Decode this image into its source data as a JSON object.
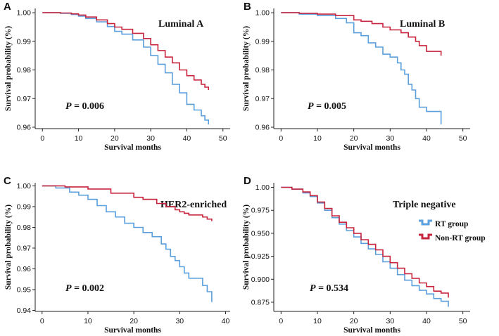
{
  "colors": {
    "rt": "#5b9fdc",
    "nonrt": "#c8253e",
    "axis": "#222222"
  },
  "legend": {
    "rt_label": "RT group",
    "nonrt_label": "Non-RT group",
    "placement": "right-of-panel-D"
  },
  "chart_data": [
    {
      "type": "line",
      "letter": "A",
      "title": "Luminal A",
      "xlabel": "Survival months",
      "ylabel": "Survival probability (%)",
      "xlim": [
        -2,
        52
      ],
      "ylim": [
        0.9595,
        1.0015
      ],
      "xticks": [
        0,
        10,
        20,
        30,
        40,
        50
      ],
      "yticks": [
        0.96,
        0.97,
        0.98,
        0.99,
        1.0
      ],
      "ytick_labels": [
        "0.96",
        "0.97",
        "0.98",
        "0.99",
        "1.00"
      ],
      "p_prefix": "P",
      "p_value": "= 0.006",
      "series": [
        {
          "name": "RT group",
          "x": [
            0,
            5,
            8,
            10,
            12,
            15,
            18,
            20,
            22,
            25,
            28,
            30,
            32,
            34,
            36,
            38,
            40,
            42,
            44,
            45,
            46
          ],
          "y": [
            1.0,
            0.9998,
            0.9994,
            0.9988,
            0.998,
            0.9968,
            0.9952,
            0.9935,
            0.9925,
            0.9905,
            0.988,
            0.985,
            0.982,
            0.979,
            0.975,
            0.972,
            0.968,
            0.966,
            0.964,
            0.9625,
            0.961
          ]
        },
        {
          "name": "Non-RT group",
          "x": [
            0,
            5,
            8,
            10,
            12,
            15,
            18,
            20,
            22,
            25,
            28,
            30,
            32,
            34,
            36,
            38,
            40,
            42,
            44,
            45,
            46
          ],
          "y": [
            1.0,
            0.9999,
            0.9996,
            0.9992,
            0.9985,
            0.9975,
            0.9962,
            0.995,
            0.9942,
            0.9928,
            0.991,
            0.9888,
            0.9868,
            0.9845,
            0.9825,
            0.98,
            0.978,
            0.9765,
            0.975,
            0.974,
            0.973
          ]
        }
      ]
    },
    {
      "type": "line",
      "letter": "B",
      "title": "Luminal B",
      "xlabel": "Survival months",
      "ylabel": "Survival probability (%)",
      "xlim": [
        -2,
        52
      ],
      "ylim": [
        0.9595,
        1.0015
      ],
      "xticks": [
        0,
        10,
        20,
        30,
        40,
        50
      ],
      "yticks": [
        0.96,
        0.97,
        0.98,
        0.99,
        1.0
      ],
      "ytick_labels": [
        "0.96",
        "0.97",
        "0.98",
        "0.99",
        "1.00"
      ],
      "p_prefix": "P",
      "p_value": "= 0.005",
      "series": [
        {
          "name": "RT group",
          "x": [
            0,
            5,
            10,
            15,
            18,
            20,
            22,
            24,
            26,
            28,
            30,
            32,
            33,
            34,
            35,
            36,
            37,
            38,
            40,
            42,
            44
          ],
          "y": [
            1.0,
            0.9995,
            0.999,
            0.998,
            0.9965,
            0.993,
            0.992,
            0.9895,
            0.988,
            0.9855,
            0.9845,
            0.9825,
            0.98,
            0.9785,
            0.975,
            0.973,
            0.97,
            0.967,
            0.9655,
            0.9655,
            0.961
          ]
        },
        {
          "name": "Non-RT group",
          "x": [
            0,
            5,
            10,
            15,
            20,
            22,
            25,
            28,
            30,
            33,
            35,
            37,
            38,
            40,
            42,
            44
          ],
          "y": [
            1.0,
            0.9998,
            0.9995,
            0.999,
            0.9975,
            0.997,
            0.9962,
            0.995,
            0.994,
            0.993,
            0.9915,
            0.99,
            0.9885,
            0.9865,
            0.9865,
            0.985
          ]
        }
      ]
    },
    {
      "type": "line",
      "letter": "C",
      "title": "HER2-enriched",
      "xlabel": "Survival months",
      "ylabel": "Survival probability (%)",
      "xlim": [
        -1.5,
        41
      ],
      "ylim": [
        0.9395,
        1.0015
      ],
      "xticks": [
        0,
        10,
        20,
        30,
        40
      ],
      "yticks": [
        0.94,
        0.95,
        0.96,
        0.97,
        0.98,
        0.99,
        1.0
      ],
      "ytick_labels": [
        "0.94",
        "0.95",
        "0.96",
        "0.97",
        "0.98",
        "0.99",
        "1.00"
      ],
      "p_prefix": "P",
      "p_value": "= 0.002",
      "series": [
        {
          "name": "RT group",
          "x": [
            0,
            3,
            6,
            8,
            10,
            12,
            14,
            16,
            18,
            20,
            22,
            24,
            26,
            27,
            28,
            29,
            30,
            31,
            32,
            34,
            35,
            36,
            37
          ],
          "y": [
            1.0,
            0.999,
            0.997,
            0.9955,
            0.9935,
            0.9905,
            0.9875,
            0.985,
            0.982,
            0.98,
            0.9775,
            0.9755,
            0.972,
            0.9695,
            0.966,
            0.964,
            0.961,
            0.958,
            0.9555,
            0.9555,
            0.952,
            0.949,
            0.944
          ]
        },
        {
          "name": "Non-RT group",
          "x": [
            0,
            5,
            10,
            15,
            20,
            22,
            25,
            27,
            29,
            30,
            31,
            32,
            34,
            35,
            36,
            37
          ],
          "y": [
            1.0,
            0.9995,
            0.9985,
            0.9965,
            0.9945,
            0.9935,
            0.9915,
            0.99,
            0.9885,
            0.9875,
            0.9868,
            0.986,
            0.986,
            0.985,
            0.984,
            0.983
          ]
        }
      ]
    },
    {
      "type": "line",
      "letter": "D",
      "title": "Triple negative",
      "xlabel": "Survival months",
      "ylabel": "Survival probability (%)",
      "xlim": [
        -2,
        52
      ],
      "ylim": [
        0.865,
        1.005
      ],
      "xticks": [
        0,
        10,
        20,
        30,
        40,
        50
      ],
      "yticks": [
        0.875,
        0.9,
        0.925,
        0.95,
        0.975,
        1.0
      ],
      "ytick_labels": [
        "0.875",
        "0.900",
        "0.925",
        "0.950",
        "0.975",
        "1.00"
      ],
      "p_prefix": "P",
      "p_value": "= 0.534",
      "series": [
        {
          "name": "RT group",
          "x": [
            0,
            3,
            6,
            8,
            10,
            12,
            14,
            16,
            18,
            20,
            22,
            24,
            26,
            28,
            30,
            32,
            34,
            36,
            38,
            40,
            42,
            44,
            46
          ],
          "y": [
            1.0,
            0.998,
            0.994,
            0.99,
            0.983,
            0.975,
            0.967,
            0.96,
            0.953,
            0.946,
            0.939,
            0.933,
            0.927,
            0.919,
            0.912,
            0.905,
            0.899,
            0.893,
            0.888,
            0.884,
            0.879,
            0.876,
            0.87
          ]
        },
        {
          "name": "Non-RT group",
          "x": [
            0,
            3,
            6,
            8,
            10,
            12,
            14,
            16,
            18,
            20,
            22,
            24,
            26,
            28,
            30,
            32,
            34,
            36,
            38,
            40,
            42,
            44,
            46
          ],
          "y": [
            1.0,
            0.998,
            0.995,
            0.991,
            0.984,
            0.977,
            0.969,
            0.962,
            0.956,
            0.95,
            0.943,
            0.938,
            0.932,
            0.925,
            0.918,
            0.912,
            0.906,
            0.901,
            0.896,
            0.892,
            0.887,
            0.885,
            0.88
          ]
        }
      ]
    }
  ]
}
